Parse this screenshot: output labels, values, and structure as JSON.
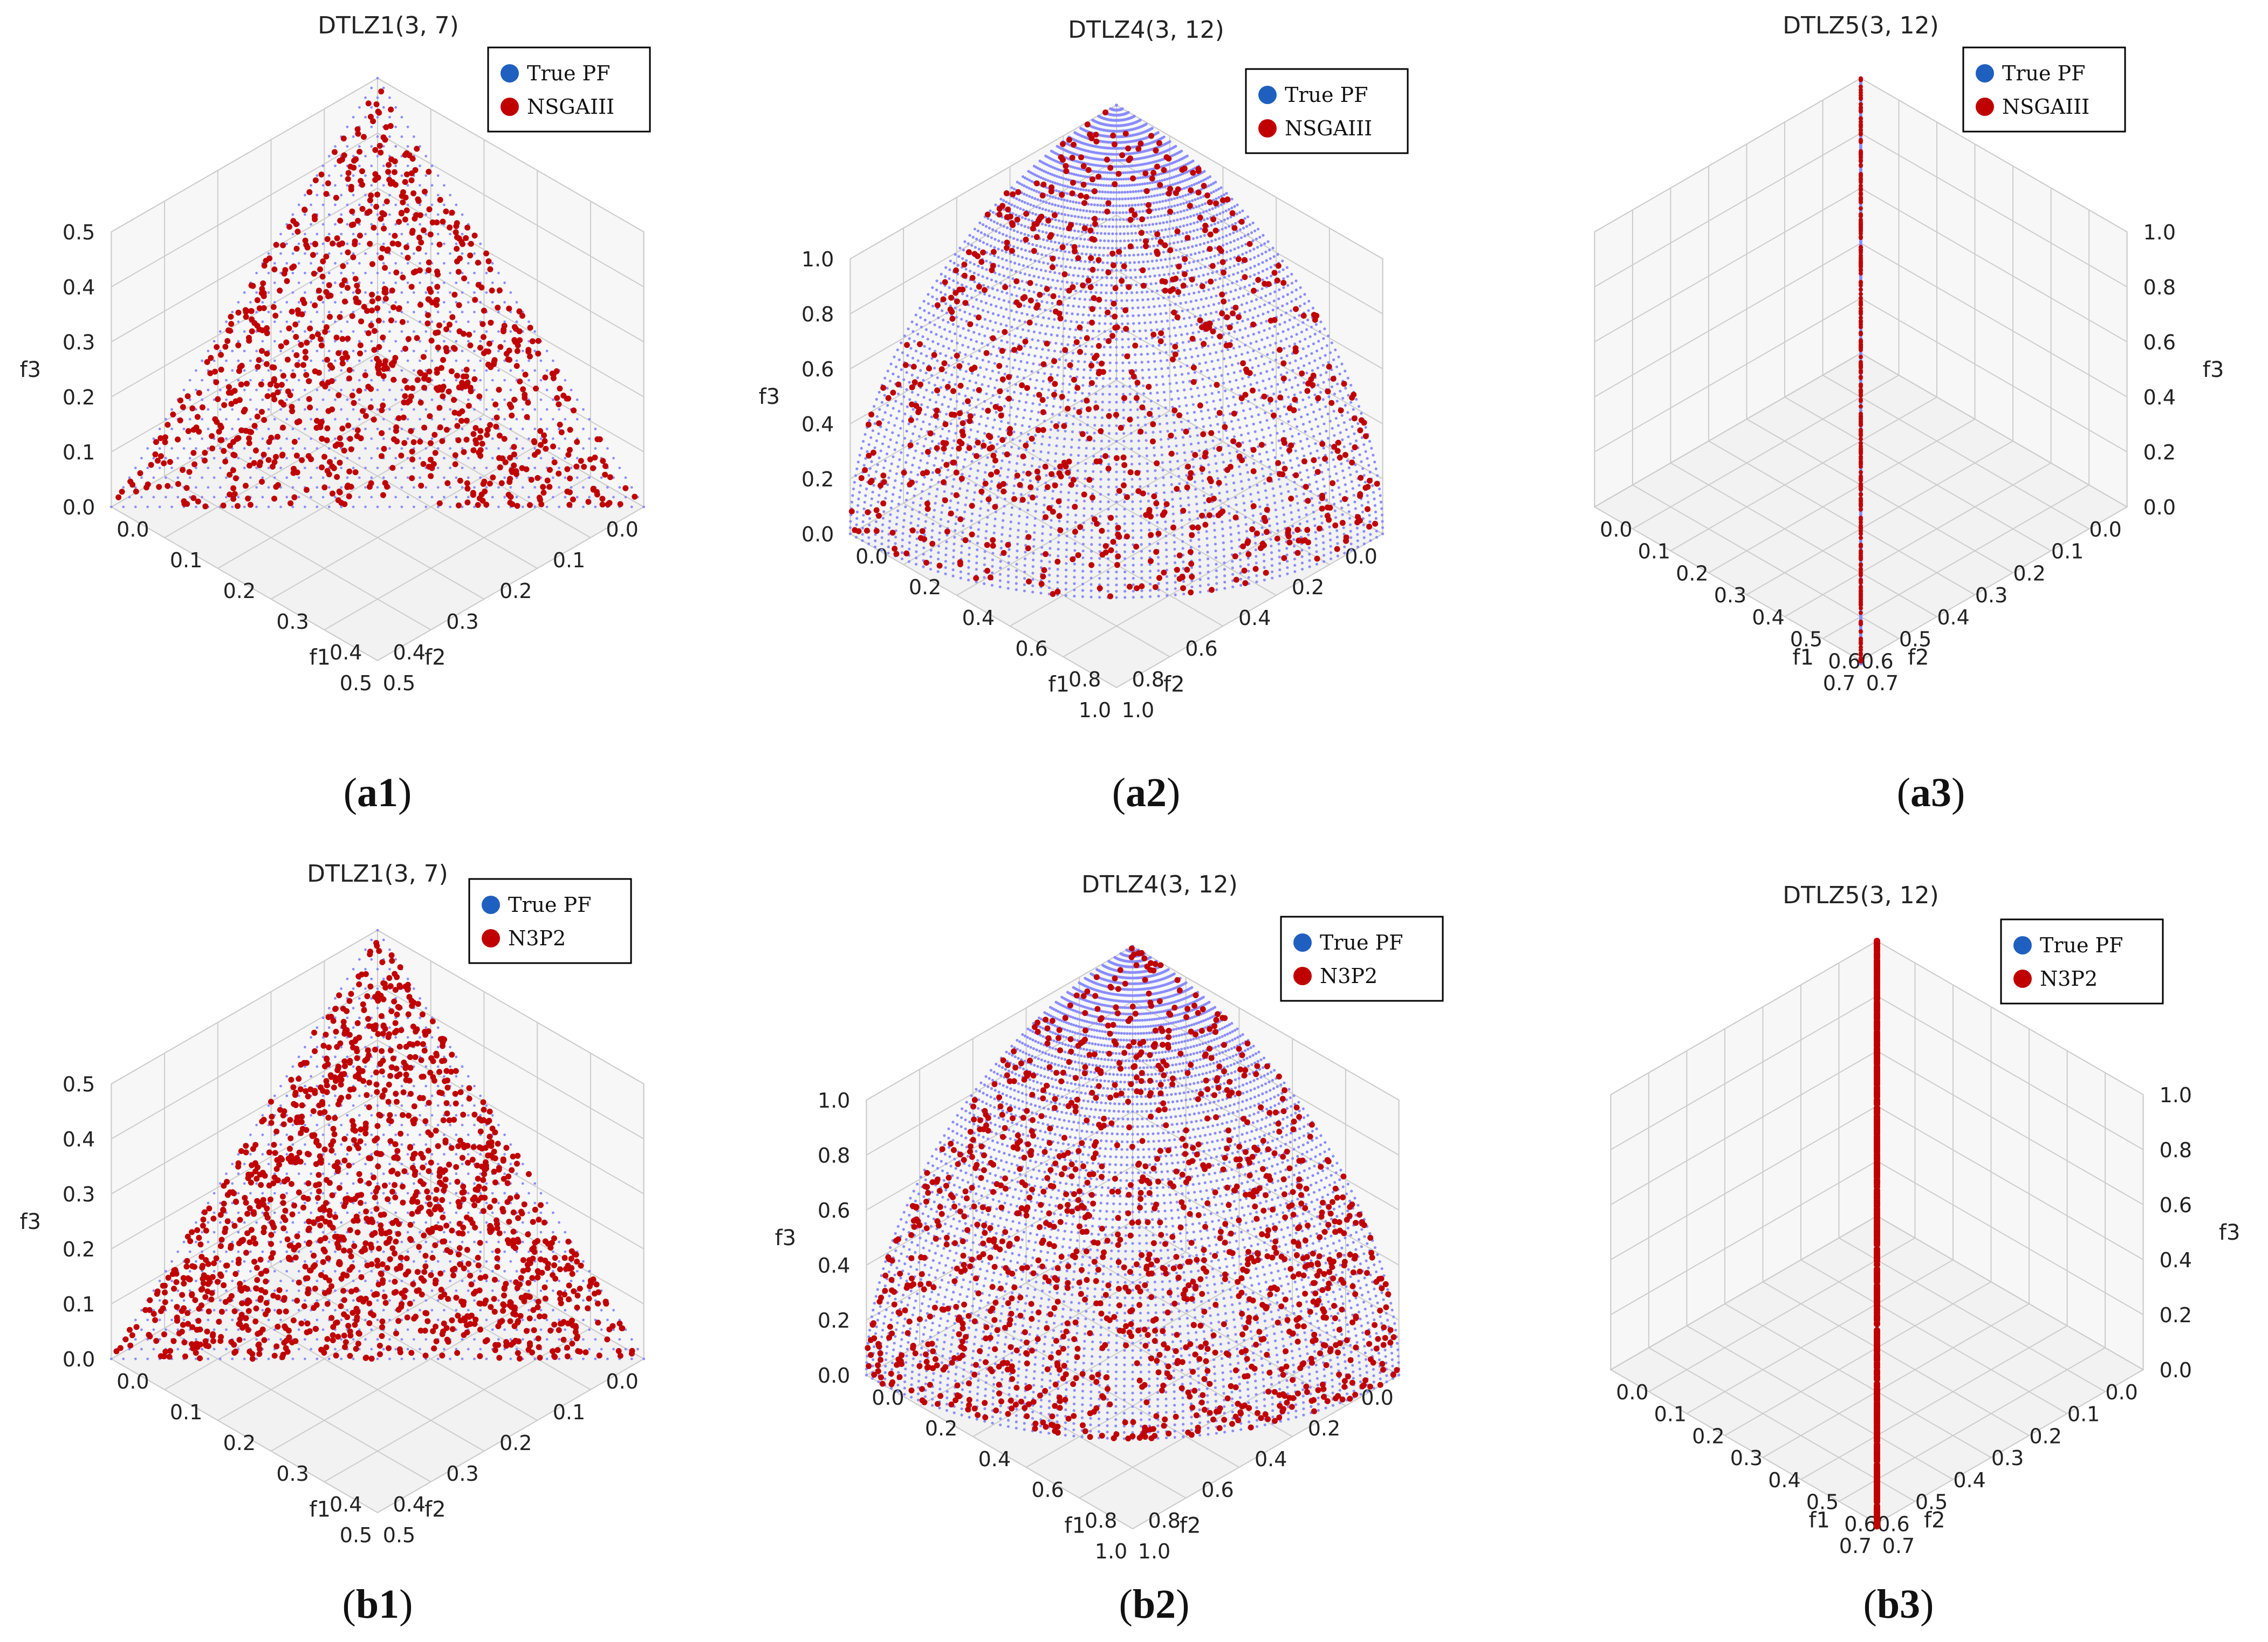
{
  "colors": {
    "true_pf": "#8a8cff",
    "algorithm": "#c00000",
    "legend_true_pf": "#1f5fbf",
    "pane_floor": "#f2f2f2",
    "pane_wall": "#f7f7f7",
    "grid": "#cccccc"
  },
  "chart_data": [
    {
      "id": "a1",
      "type": "scatter3d",
      "title": "DTLZ1(3, 7)",
      "caption_letter": "a",
      "caption_number": "1",
      "front_shape": "linear-simplex",
      "sum": 0.5,
      "xlabel": "f1",
      "ylabel": "f2",
      "zlabel": "f3",
      "xticks": [
        "0.0",
        "0.1",
        "0.2",
        "0.3",
        "0.4",
        "0.5"
      ],
      "yticks": [
        "0.0",
        "0.1",
        "0.2",
        "0.3",
        "0.4",
        "0.5"
      ],
      "zticks": [
        "0.0",
        "0.1",
        "0.2",
        "0.3",
        "0.4",
        "0.5"
      ],
      "xlim": [
        0,
        0.5
      ],
      "ylim": [
        0,
        0.5
      ],
      "zlim": [
        0,
        0.5
      ],
      "series": [
        {
          "name": "True PF"
        },
        {
          "name": "NSGAIII"
        }
      ],
      "legend": "top-right"
    },
    {
      "id": "a2",
      "type": "scatter3d",
      "title": "DTLZ4(3, 12)",
      "caption_letter": "a",
      "caption_number": "2",
      "front_shape": "spherical",
      "radius": 1.0,
      "xlabel": "f1",
      "ylabel": "f2",
      "zlabel": "f3",
      "xticks": [
        "0.0",
        "0.2",
        "0.4",
        "0.6",
        "0.8",
        "1.0"
      ],
      "yticks": [
        "0.0",
        "0.2",
        "0.4",
        "0.6",
        "0.8",
        "1.0"
      ],
      "zticks": [
        "0.0",
        "0.2",
        "0.4",
        "0.6",
        "0.8",
        "1.0"
      ],
      "xlim": [
        0,
        1.0
      ],
      "ylim": [
        0,
        1.0
      ],
      "zlim": [
        0,
        1.0
      ],
      "series": [
        {
          "name": "True PF"
        },
        {
          "name": "NSGAIII"
        }
      ],
      "legend": "top-right"
    },
    {
      "id": "a3",
      "type": "scatter3d",
      "title": "DTLZ5(3, 12)",
      "caption_letter": "a",
      "caption_number": "3",
      "front_shape": "degenerate-curve",
      "radius": 1.0,
      "xlabel": "f1",
      "ylabel": "f2",
      "zlabel": "f3",
      "xticks": [
        "0.0",
        "0.1",
        "0.2",
        "0.3",
        "0.4",
        "0.5",
        "0.6",
        "0.7"
      ],
      "yticks": [
        "0.0",
        "0.1",
        "0.2",
        "0.3",
        "0.4",
        "0.5",
        "0.6",
        "0.7"
      ],
      "zticks": [
        "0.0",
        "0.2",
        "0.4",
        "0.6",
        "0.8",
        "1.0"
      ],
      "xlim": [
        0,
        0.7
      ],
      "ylim": [
        0,
        0.7
      ],
      "zlim": [
        0,
        1.0
      ],
      "series": [
        {
          "name": "True PF"
        },
        {
          "name": "NSGAIII"
        }
      ],
      "legend": "top-right"
    },
    {
      "id": "b1",
      "type": "scatter3d",
      "title": "DTLZ1(3, 7)",
      "caption_letter": "b",
      "caption_number": "1",
      "front_shape": "linear-simplex",
      "sum": 0.5,
      "xlabel": "f1",
      "ylabel": "f2",
      "zlabel": "f3",
      "xticks": [
        "0.0",
        "0.1",
        "0.2",
        "0.3",
        "0.4",
        "0.5"
      ],
      "yticks": [
        "0.0",
        "0.1",
        "0.2",
        "0.3",
        "0.4",
        "0.5"
      ],
      "zticks": [
        "0.0",
        "0.1",
        "0.2",
        "0.3",
        "0.4",
        "0.5"
      ],
      "xlim": [
        0,
        0.5
      ],
      "ylim": [
        0,
        0.5
      ],
      "zlim": [
        0,
        0.5
      ],
      "series": [
        {
          "name": "True PF"
        },
        {
          "name": "N3P2"
        }
      ],
      "legend": "top-right"
    },
    {
      "id": "b2",
      "type": "scatter3d",
      "title": "DTLZ4(3, 12)",
      "caption_letter": "b",
      "caption_number": "2",
      "front_shape": "spherical",
      "radius": 1.0,
      "xlabel": "f1",
      "ylabel": "f2",
      "zlabel": "f3",
      "xticks": [
        "0.0",
        "0.2",
        "0.4",
        "0.6",
        "0.8",
        "1.0"
      ],
      "yticks": [
        "0.0",
        "0.2",
        "0.4",
        "0.6",
        "0.8",
        "1.0"
      ],
      "zticks": [
        "0.0",
        "0.2",
        "0.4",
        "0.6",
        "0.8",
        "1.0"
      ],
      "xlim": [
        0,
        1.0
      ],
      "ylim": [
        0,
        1.0
      ],
      "zlim": [
        0,
        1.0
      ],
      "series": [
        {
          "name": "True PF"
        },
        {
          "name": "N3P2"
        }
      ],
      "legend": "top-right"
    },
    {
      "id": "b3",
      "type": "scatter3d",
      "title": "DTLZ5(3, 12)",
      "caption_letter": "b",
      "caption_number": "3",
      "front_shape": "degenerate-curve",
      "radius": 1.0,
      "xlabel": "f1",
      "ylabel": "f2",
      "zlabel": "f3",
      "xticks": [
        "0.0",
        "0.1",
        "0.2",
        "0.3",
        "0.4",
        "0.5",
        "0.6",
        "0.7"
      ],
      "yticks": [
        "0.0",
        "0.1",
        "0.2",
        "0.3",
        "0.4",
        "0.5",
        "0.6",
        "0.7"
      ],
      "zticks": [
        "0.0",
        "0.2",
        "0.4",
        "0.6",
        "0.8",
        "1.0"
      ],
      "xlim": [
        0,
        0.7
      ],
      "ylim": [
        0,
        0.7
      ],
      "zlim": [
        0,
        1.0
      ],
      "series": [
        {
          "name": "True PF"
        },
        {
          "name": "N3P2"
        }
      ],
      "legend": "top-right"
    }
  ]
}
